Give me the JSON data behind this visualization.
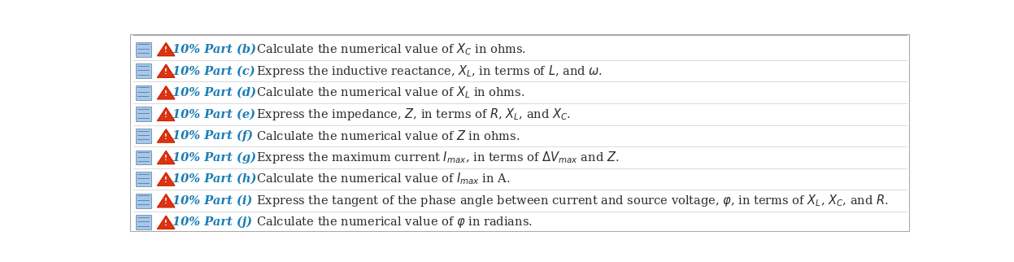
{
  "figsize": [
    12.47,
    3.22
  ],
  "dpi": 100,
  "bg_color": "#ffffff",
  "rows": [
    {
      "part": "10% Part (b)",
      "text": "  Calculate the numerical value of $X_C$ in ohms."
    },
    {
      "part": "10% Part (c)",
      "text": "  Express the inductive reactance, $X_L$, in terms of $L$, and $\\omega$."
    },
    {
      "part": "10% Part (d)",
      "text": "  Calculate the numerical value of $X_L$ in ohms."
    },
    {
      "part": "10% Part (e)",
      "text": "  Express the impedance, $Z$, in terms of $R$, $X_L$, and $X_C$."
    },
    {
      "part": "10% Part (f)",
      "text": "  Calculate the numerical value of $Z$ in ohms."
    },
    {
      "part": "10% Part (g)",
      "text": "  Express the maximum current $I_{max}$, in terms of $\\Delta V_{max}$ and $Z$."
    },
    {
      "part": "10% Part (h)",
      "text": "  Calculate the numerical value of $I_{max}$ in A."
    },
    {
      "part": "10% Part (i)",
      "text": "  Express the tangent of the phase angle between current and source voltage, $\\varphi$, in terms of $X_L$, $X_C$, and $R$."
    },
    {
      "part": "10% Part (j)",
      "text": "  Calculate the numerical value of $\\varphi$ in radians."
    }
  ],
  "part_color": "#1a7db5",
  "text_color": "#2c2c2c",
  "font_size": 10.5
}
